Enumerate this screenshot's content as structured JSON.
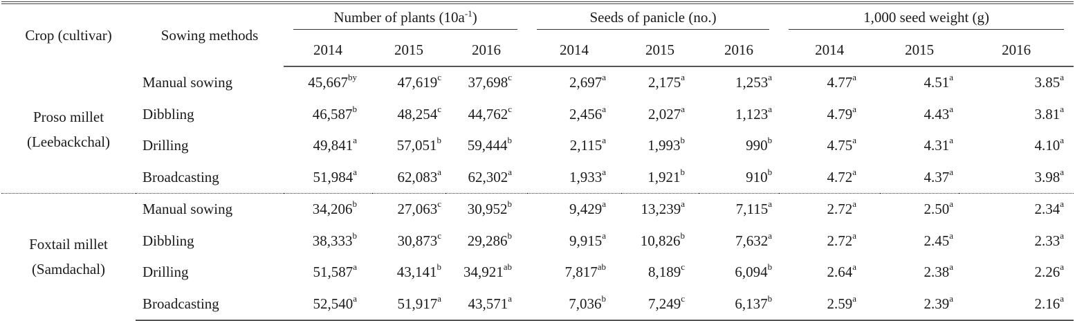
{
  "table": {
    "header": {
      "crop_label": "Crop (cultivar)",
      "method_label": "Sowing methods",
      "groups": [
        {
          "title_main": "Number of plants (10a",
          "title_sup": "-1",
          "title_tail": ")",
          "years": [
            "2014",
            "2015",
            "2016"
          ]
        },
        {
          "title_main": "Seeds of panicle (no.)",
          "title_sup": "",
          "title_tail": "",
          "years": [
            "2014",
            "2015",
            "2016"
          ]
        },
        {
          "title_main": "1,000 seed weight (g)",
          "title_sup": "",
          "title_tail": "",
          "years": [
            "2014",
            "2015",
            "2016"
          ]
        }
      ]
    },
    "crops": [
      {
        "name_line1": "Proso millet",
        "name_line2": "(Leebackchal)",
        "rows": [
          {
            "method": "Manual sowing",
            "cells": [
              {
                "v": "45,667",
                "s": "by"
              },
              {
                "v": "47,619",
                "s": "c"
              },
              {
                "v": "37,698",
                "s": "c"
              },
              {
                "v": "2,697",
                "s": "a"
              },
              {
                "v": "2,175",
                "s": "a"
              },
              {
                "v": "1,253",
                "s": "a"
              },
              {
                "v": "4.77",
                "s": "a"
              },
              {
                "v": "4.51",
                "s": "a"
              },
              {
                "v": "3.85",
                "s": "a"
              }
            ]
          },
          {
            "method": "Dibbling",
            "cells": [
              {
                "v": "46,587",
                "s": "b"
              },
              {
                "v": "48,254",
                "s": "c"
              },
              {
                "v": "44,762",
                "s": "c"
              },
              {
                "v": "2,456",
                "s": "a"
              },
              {
                "v": "2,027",
                "s": "a"
              },
              {
                "v": "1,123",
                "s": "a"
              },
              {
                "v": "4.79",
                "s": "a"
              },
              {
                "v": "4.43",
                "s": "a"
              },
              {
                "v": "3.81",
                "s": "a"
              }
            ]
          },
          {
            "method": "Drilling",
            "cells": [
              {
                "v": "49,841",
                "s": "a"
              },
              {
                "v": "57,051",
                "s": "b"
              },
              {
                "v": "59,444",
                "s": "b"
              },
              {
                "v": "2,115",
                "s": "a"
              },
              {
                "v": "1,993",
                "s": "b"
              },
              {
                "v": "990",
                "s": "b"
              },
              {
                "v": "4.75",
                "s": "a"
              },
              {
                "v": "4.31",
                "s": "a"
              },
              {
                "v": "4.10",
                "s": "a"
              }
            ]
          },
          {
            "method": "Broadcasting",
            "cells": [
              {
                "v": "51,984",
                "s": "a"
              },
              {
                "v": "62,083",
                "s": "a"
              },
              {
                "v": "62,302",
                "s": "a"
              },
              {
                "v": "1,933",
                "s": "a"
              },
              {
                "v": "1,921",
                "s": "b"
              },
              {
                "v": "910",
                "s": "b"
              },
              {
                "v": "4.72",
                "s": "a"
              },
              {
                "v": "4.37",
                "s": "a"
              },
              {
                "v": "3.98",
                "s": "a"
              }
            ]
          }
        ]
      },
      {
        "name_line1": "Foxtail millet",
        "name_line2": "(Samdachal)",
        "rows": [
          {
            "method": "Manual sowing",
            "cells": [
              {
                "v": "34,206",
                "s": "b"
              },
              {
                "v": "27,063",
                "s": "c"
              },
              {
                "v": "30,952",
                "s": "b"
              },
              {
                "v": "9,429",
                "s": "a"
              },
              {
                "v": "13,239",
                "s": "a"
              },
              {
                "v": "7,115",
                "s": "a"
              },
              {
                "v": "2.72",
                "s": "a"
              },
              {
                "v": "2.50",
                "s": "a"
              },
              {
                "v": "2.34",
                "s": "a"
              }
            ]
          },
          {
            "method": "Dibbling",
            "cells": [
              {
                "v": "38,333",
                "s": "b"
              },
              {
                "v": "30,873",
                "s": "c"
              },
              {
                "v": "29,286",
                "s": "b"
              },
              {
                "v": "9,915",
                "s": "a"
              },
              {
                "v": "10,826",
                "s": "b"
              },
              {
                "v": "7,632",
                "s": "a"
              },
              {
                "v": "2.72",
                "s": "a"
              },
              {
                "v": "2.45",
                "s": "a"
              },
              {
                "v": "2.33",
                "s": "a"
              }
            ]
          },
          {
            "method": "Drilling",
            "cells": [
              {
                "v": "51,587",
                "s": "a"
              },
              {
                "v": "43,141",
                "s": "b"
              },
              {
                "v": "34,921",
                "s": "ab"
              },
              {
                "v": "7,817",
                "s": "ab"
              },
              {
                "v": "8,189",
                "s": "c"
              },
              {
                "v": "6,094",
                "s": "b"
              },
              {
                "v": "2.64",
                "s": "a"
              },
              {
                "v": "2.38",
                "s": "a"
              },
              {
                "v": "2.26",
                "s": "a"
              }
            ]
          },
          {
            "method": "Broadcasting",
            "cells": [
              {
                "v": "52,540",
                "s": "a"
              },
              {
                "v": "51,917",
                "s": "a"
              },
              {
                "v": "43,571",
                "s": "a"
              },
              {
                "v": "7,036",
                "s": "b"
              },
              {
                "v": "7,249",
                "s": "c"
              },
              {
                "v": "6,137",
                "s": "b"
              },
              {
                "v": "2.59",
                "s": "a"
              },
              {
                "v": "2.39",
                "s": "a"
              },
              {
                "v": "2.16",
                "s": "a"
              }
            ]
          }
        ]
      }
    ]
  }
}
